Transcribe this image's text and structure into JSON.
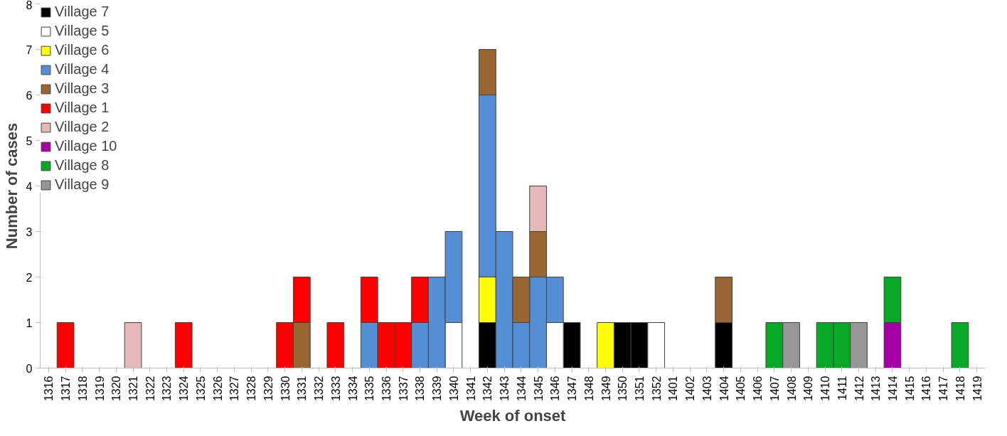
{
  "chart_data": {
    "type": "bar",
    "stacked": true,
    "xlabel": "Week of onset",
    "ylabel": "Number of cases",
    "categories": [
      "1316",
      "1317",
      "1318",
      "1319",
      "1320",
      "1321",
      "1322",
      "1323",
      "1324",
      "1325",
      "1326",
      "1327",
      "1328",
      "1329",
      "1330",
      "1331",
      "1332",
      "1333",
      "1334",
      "1335",
      "1336",
      "1337",
      "1338",
      "1339",
      "1340",
      "1341",
      "1342",
      "1343",
      "1344",
      "1345",
      "1346",
      "1347",
      "1348",
      "1349",
      "1350",
      "1351",
      "1352",
      "1401",
      "1402",
      "1403",
      "1404",
      "1405",
      "1406",
      "1407",
      "1408",
      "1409",
      "1410",
      "1411",
      "1412",
      "1413",
      "1414",
      "1415",
      "1416",
      "1417",
      "1418",
      "1419"
    ],
    "series": [
      {
        "name": "Village 7",
        "color": "#000000",
        "values": [
          0,
          0,
          0,
          0,
          0,
          0,
          0,
          0,
          0,
          0,
          0,
          0,
          0,
          0,
          0,
          0,
          0,
          0,
          0,
          0,
          0,
          0,
          0,
          0,
          0,
          0,
          1,
          0,
          0,
          0,
          0,
          1,
          0,
          0,
          1,
          1,
          0,
          0,
          0,
          0,
          1,
          0,
          0,
          0,
          0,
          0,
          0,
          0,
          0,
          0,
          0,
          0,
          0,
          0,
          0,
          0
        ]
      },
      {
        "name": "Village 5",
        "color": "#ffffff",
        "values": [
          0,
          0,
          0,
          0,
          0,
          0,
          0,
          0,
          0,
          0,
          0,
          0,
          0,
          0,
          0,
          0,
          0,
          0,
          0,
          0,
          0,
          0,
          0,
          0,
          1,
          0,
          0,
          0,
          0,
          0,
          1,
          0,
          0,
          0,
          0,
          0,
          1,
          0,
          0,
          0,
          0,
          0,
          0,
          0,
          0,
          0,
          0,
          0,
          0,
          0,
          0,
          0,
          0,
          0,
          0,
          0
        ]
      },
      {
        "name": "Village 6",
        "color": "#ffff00",
        "values": [
          0,
          0,
          0,
          0,
          0,
          0,
          0,
          0,
          0,
          0,
          0,
          0,
          0,
          0,
          0,
          0,
          0,
          0,
          0,
          0,
          0,
          0,
          0,
          0,
          0,
          0,
          1,
          0,
          0,
          0,
          0,
          0,
          0,
          1,
          0,
          0,
          0,
          0,
          0,
          0,
          0,
          0,
          0,
          0,
          0,
          0,
          0,
          0,
          0,
          0,
          0,
          0,
          0,
          0,
          0,
          0
        ]
      },
      {
        "name": "Village 4",
        "color": "#558ed5",
        "values": [
          0,
          0,
          0,
          0,
          0,
          0,
          0,
          0,
          0,
          0,
          0,
          0,
          0,
          0,
          0,
          0,
          0,
          0,
          0,
          1,
          0,
          0,
          1,
          2,
          2,
          0,
          4,
          3,
          1,
          2,
          1,
          0,
          0,
          0,
          0,
          0,
          0,
          0,
          0,
          0,
          0,
          0,
          0,
          0,
          0,
          0,
          0,
          0,
          0,
          0,
          0,
          0,
          0,
          0,
          0,
          0
        ]
      },
      {
        "name": "Village 3",
        "color": "#996633",
        "values": [
          0,
          0,
          0,
          0,
          0,
          0,
          0,
          0,
          0,
          0,
          0,
          0,
          0,
          0,
          0,
          1,
          0,
          0,
          0,
          0,
          0,
          0,
          0,
          0,
          0,
          0,
          1,
          0,
          1,
          1,
          0,
          0,
          0,
          0,
          0,
          0,
          0,
          0,
          0,
          0,
          1,
          0,
          0,
          0,
          0,
          0,
          0,
          0,
          0,
          0,
          0,
          0,
          0,
          0,
          0,
          0
        ]
      },
      {
        "name": "Village 1",
        "color": "#ff0000",
        "values": [
          0,
          1,
          0,
          0,
          0,
          0,
          0,
          0,
          1,
          0,
          0,
          0,
          0,
          0,
          1,
          1,
          0,
          1,
          0,
          1,
          1,
          1,
          1,
          0,
          0,
          0,
          0,
          0,
          0,
          0,
          0,
          0,
          0,
          0,
          0,
          0,
          0,
          0,
          0,
          0,
          0,
          0,
          0,
          0,
          0,
          0,
          0,
          0,
          0,
          0,
          0,
          0,
          0,
          0,
          0,
          0
        ]
      },
      {
        "name": "Village 2",
        "color": "#e6b8b7",
        "values": [
          0,
          0,
          0,
          0,
          0,
          1,
          0,
          0,
          0,
          0,
          0,
          0,
          0,
          0,
          0,
          0,
          0,
          0,
          0,
          0,
          0,
          0,
          0,
          0,
          0,
          0,
          0,
          0,
          0,
          1,
          0,
          0,
          0,
          0,
          0,
          0,
          0,
          0,
          0,
          0,
          0,
          0,
          0,
          0,
          0,
          0,
          0,
          0,
          0,
          0,
          0,
          0,
          0,
          0,
          0,
          0
        ]
      },
      {
        "name": "Village 10",
        "color": "#a800a8",
        "values": [
          0,
          0,
          0,
          0,
          0,
          0,
          0,
          0,
          0,
          0,
          0,
          0,
          0,
          0,
          0,
          0,
          0,
          0,
          0,
          0,
          0,
          0,
          0,
          0,
          0,
          0,
          0,
          0,
          0,
          0,
          0,
          0,
          0,
          0,
          0,
          0,
          0,
          0,
          0,
          0,
          0,
          0,
          0,
          0,
          0,
          0,
          0,
          0,
          0,
          0,
          1,
          0,
          0,
          0,
          0,
          0
        ]
      },
      {
        "name": "Village 8",
        "color": "#06a824",
        "values": [
          0,
          0,
          0,
          0,
          0,
          0,
          0,
          0,
          0,
          0,
          0,
          0,
          0,
          0,
          0,
          0,
          0,
          0,
          0,
          0,
          0,
          0,
          0,
          0,
          0,
          0,
          0,
          0,
          0,
          0,
          0,
          0,
          0,
          0,
          0,
          0,
          0,
          0,
          0,
          0,
          0,
          0,
          0,
          1,
          0,
          0,
          1,
          1,
          0,
          0,
          1,
          0,
          0,
          0,
          1,
          0
        ]
      },
      {
        "name": "Village 9",
        "color": "#969696",
        "values": [
          0,
          0,
          0,
          0,
          0,
          0,
          0,
          0,
          0,
          0,
          0,
          0,
          0,
          0,
          0,
          0,
          0,
          0,
          0,
          0,
          0,
          0,
          0,
          0,
          0,
          0,
          0,
          0,
          0,
          0,
          0,
          0,
          0,
          0,
          0,
          0,
          0,
          0,
          0,
          0,
          0,
          0,
          0,
          0,
          1,
          0,
          0,
          0,
          1,
          0,
          0,
          0,
          0,
          0,
          0,
          0
        ]
      }
    ],
    "ylim": [
      0,
      8
    ],
    "yticks": [
      0,
      1,
      2,
      3,
      4,
      5,
      6,
      7,
      8
    ],
    "grid": false,
    "legend": "top left"
  }
}
